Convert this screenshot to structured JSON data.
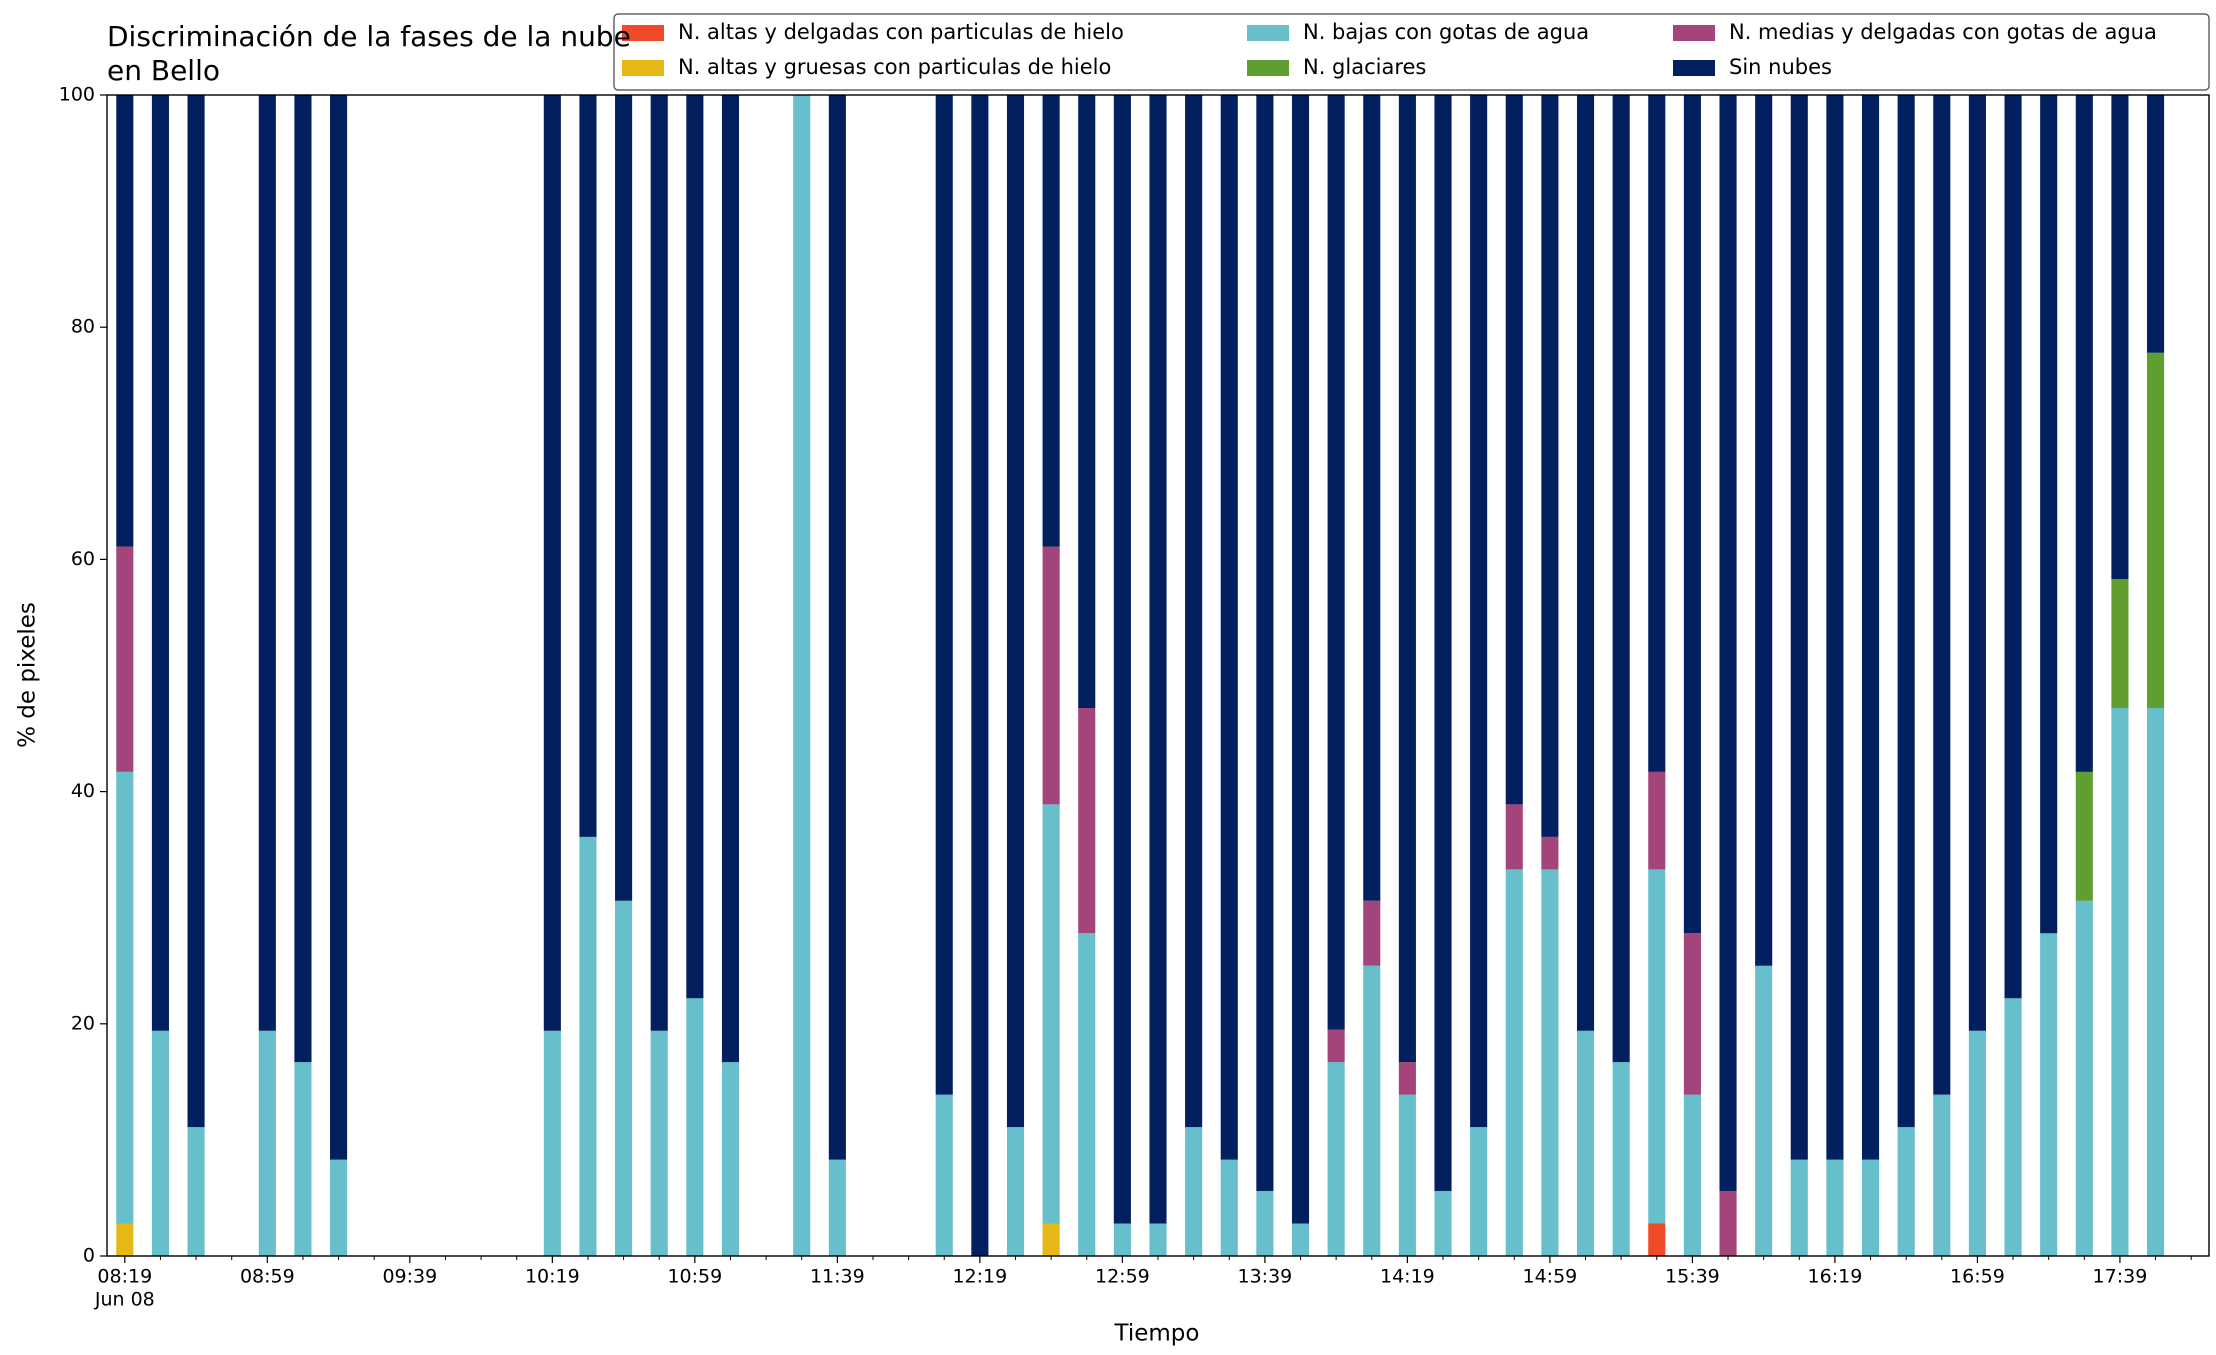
{
  "chart_data": {
    "type": "stacked_bar",
    "title": "Discriminación de la fases de la nube en Bello",
    "xlabel": "Tiempo",
    "ylabel": "% de pixeles",
    "x_date_label": "Jun 08",
    "x": [
      "08:19",
      "08:29",
      "08:39",
      "08:59",
      "09:09",
      "09:19",
      "10:19",
      "10:29",
      "10:39",
      "10:49",
      "10:59",
      "11:09",
      "11:29",
      "11:39",
      "12:09",
      "12:19",
      "12:29",
      "12:39",
      "12:49",
      "12:59",
      "13:09",
      "13:19",
      "13:29",
      "13:39",
      "13:49",
      "13:59",
      "14:09",
      "14:19",
      "14:29",
      "14:39",
      "14:49",
      "14:59",
      "15:09",
      "15:19",
      "15:29",
      "15:39",
      "15:49",
      "15:59",
      "16:09",
      "16:19",
      "16:29",
      "16:39",
      "16:49",
      "16:59",
      "17:09",
      "17:19",
      "17:29",
      "17:39",
      "17:49"
    ],
    "series": [
      {
        "name": "N. altas y delgadas con particulas de hielo",
        "color": "#f04a28",
        "values": [
          0,
          0,
          0,
          0,
          0,
          0,
          0,
          0,
          0,
          0,
          0,
          0,
          0,
          0,
          0,
          0,
          0,
          0,
          0,
          0,
          0,
          0,
          0,
          0,
          0,
          0,
          0,
          0,
          0,
          0,
          0,
          0,
          0,
          0,
          2.8,
          0,
          0,
          0,
          0,
          0,
          0,
          0,
          0,
          0,
          0,
          0,
          0,
          0,
          0
        ]
      },
      {
        "name": "N. altas y gruesas con particulas de hielo",
        "color": "#e6b817",
        "values": [
          2.8,
          0,
          0,
          0,
          0,
          0,
          0,
          0,
          0,
          0,
          0,
          0,
          0,
          0,
          0,
          0,
          0,
          2.8,
          0,
          0,
          0,
          0,
          0,
          0,
          0,
          0,
          0,
          0,
          0,
          0,
          0,
          0,
          0,
          0,
          0,
          0,
          0,
          0,
          0,
          0,
          0,
          0,
          0,
          0,
          0,
          0,
          0,
          0,
          0
        ]
      },
      {
        "name": "N. bajas con gotas de agua",
        "color": "#66bfca",
        "values": [
          38.9,
          19.4,
          11.1,
          19.4,
          16.7,
          8.3,
          19.4,
          36.1,
          30.6,
          19.4,
          22.2,
          16.7,
          100,
          8.3,
          13.9,
          0,
          11.1,
          36.1,
          27.8,
          2.8,
          2.8,
          11.1,
          8.3,
          5.6,
          2.8,
          16.7,
          25,
          13.9,
          5.6,
          11.1,
          33.3,
          33.3,
          19.4,
          16.7,
          30.5,
          13.9,
          0,
          25,
          8.3,
          8.3,
          8.3,
          11.1,
          13.9,
          19.4,
          22.2,
          27.8,
          30.6,
          47.2,
          47.2
        ]
      },
      {
        "name": "N. glaciares",
        "color": "#5f9e2f",
        "values": [
          0,
          0,
          0,
          0,
          0,
          0,
          0,
          0,
          0,
          0,
          0,
          0,
          0,
          0,
          0,
          0,
          0,
          0,
          0,
          0,
          0,
          0,
          0,
          0,
          0,
          0,
          0,
          0,
          0,
          0,
          0,
          0,
          0,
          0,
          0,
          0,
          0,
          0,
          0,
          0,
          0,
          0,
          0,
          0,
          0,
          0,
          11.1,
          11.1,
          30.6
        ]
      },
      {
        "name": "N. medias y delgadas con gotas de agua",
        "color": "#a3457a",
        "values": [
          19.4,
          0,
          0,
          0,
          0,
          0,
          0,
          0,
          0,
          0,
          0,
          0,
          0,
          0,
          0,
          0,
          0,
          22.2,
          19.4,
          0,
          0,
          0,
          0,
          0,
          0,
          2.8,
          5.6,
          2.8,
          0,
          0,
          5.6,
          2.8,
          0,
          0,
          8.4,
          13.9,
          5.6,
          0,
          0,
          0,
          0,
          0,
          0,
          0,
          0,
          0,
          0,
          0,
          0
        ]
      },
      {
        "name": "Sin nubes",
        "color": "#021f5f",
        "values": [
          38.9,
          80.6,
          88.9,
          80.6,
          83.3,
          91.7,
          80.6,
          63.9,
          69.4,
          80.6,
          77.8,
          83.3,
          0,
          91.7,
          86.1,
          100,
          88.9,
          38.9,
          52.8,
          97.2,
          97.2,
          88.9,
          91.7,
          94.4,
          97.2,
          80.5,
          69.4,
          83.3,
          94.4,
          88.9,
          61.1,
          63.9,
          80.6,
          83.3,
          58.3,
          72.2,
          94.4,
          75,
          91.7,
          91.7,
          91.7,
          88.9,
          86.1,
          80.6,
          77.8,
          72.2,
          58.3,
          41.7,
          22.2
        ]
      }
    ],
    "xlim": [
      "08:14",
      "18:04"
    ],
    "xticks": [
      "08:19",
      "08:59",
      "09:39",
      "10:19",
      "10:59",
      "11:39",
      "12:19",
      "12:59",
      "13:39",
      "14:19",
      "14:59",
      "15:39",
      "16:19",
      "16:59",
      "17:39"
    ],
    "xminorticks": [
      "08:29",
      "08:39",
      "08:49",
      "09:09",
      "09:19",
      "09:29",
      "09:49",
      "09:59",
      "10:09",
      "10:29",
      "10:39",
      "10:49",
      "11:09",
      "11:19",
      "11:29",
      "11:49",
      "11:59",
      "12:09",
      "12:29",
      "12:39",
      "12:49",
      "13:09",
      "13:19",
      "13:29",
      "13:49",
      "13:59",
      "14:09",
      "14:29",
      "14:39",
      "14:49",
      "15:09",
      "15:19",
      "15:29",
      "15:49",
      "15:59",
      "16:09",
      "16:29",
      "16:39",
      "16:49",
      "17:09",
      "17:19",
      "17:29",
      "17:49",
      "17:59"
    ],
    "ylim": [
      0,
      100
    ],
    "yticks": [
      0,
      20,
      40,
      60,
      80,
      100
    ],
    "grid": false,
    "legend": "upper right"
  }
}
